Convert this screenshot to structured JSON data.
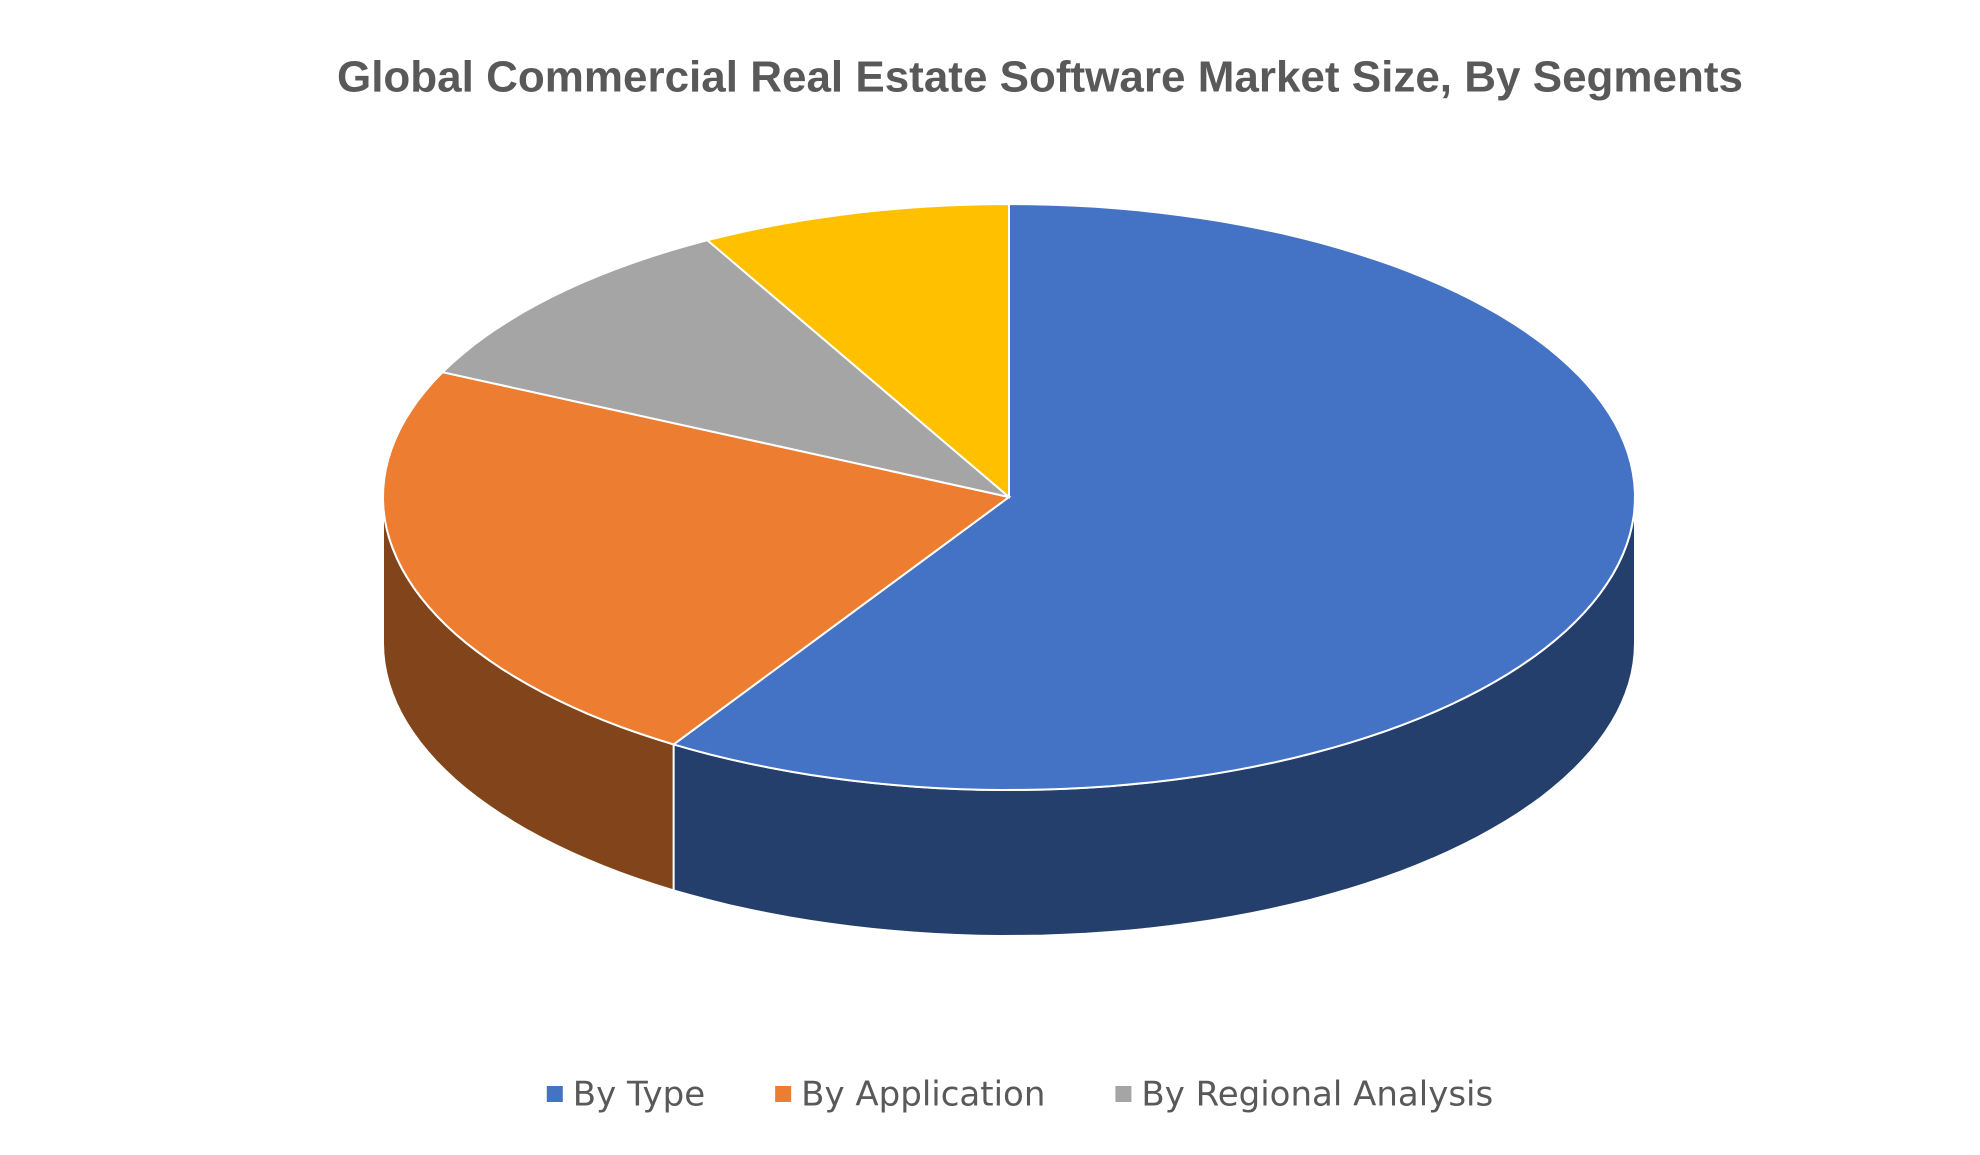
{
  "chart_data": {
    "type": "pie",
    "title": "Global Commercial Real Estate Software Market Size, By Segments",
    "categories": [
      "By Type",
      "By Application",
      "By Regional Analysis",
      null
    ],
    "values": [
      59,
      23,
      10,
      8
    ],
    "colors": [
      "#4472c4",
      "#ed7d31",
      "#a5a5a5",
      "#ffc000"
    ],
    "legend": "bottom"
  }
}
